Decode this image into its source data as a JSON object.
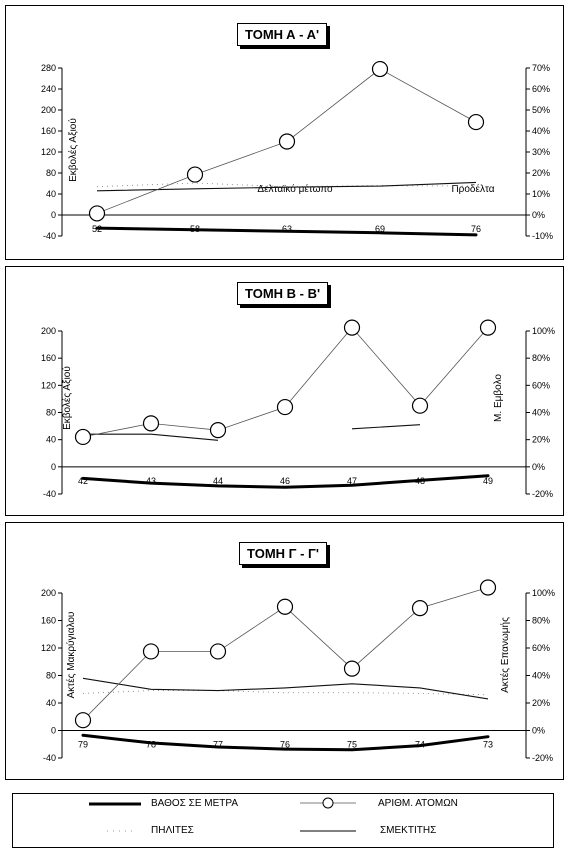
{
  "chart_data": [
    {
      "type": "line",
      "title": "ΤΟΜΗ Α - Α'",
      "categories": [
        "52",
        "58",
        "63",
        "69",
        "76"
      ],
      "ylabel": "Εκβολές Αξιού",
      "ylim": [
        -40,
        280
      ],
      "yticks": [
        -40,
        0,
        40,
        80,
        120,
        160,
        200,
        240,
        280
      ],
      "y2lim": [
        -10,
        70
      ],
      "y2ticks": [
        "-10%",
        "0%",
        "10%",
        "20%",
        "30%",
        "40%",
        "50%",
        "60%",
        "70%"
      ],
      "annotations": [
        "Δελταϊκό μέτωπο",
        "Προδέλτα"
      ],
      "series": [
        {
          "name": "ΑΡΙΘΜ. ΑΤΟΜΩΝ",
          "values": [
            3,
            77,
            140,
            278,
            177
          ]
        },
        {
          "name": "ΒΑΘΟΣ ΣΕ ΜΕΤΡΑ",
          "values": [
            -25,
            -28,
            -31,
            -34,
            -38
          ]
        },
        {
          "name": "ΠΗΛΙΤΕΣ",
          "values": [
            54,
            61,
            54,
            56,
            55
          ]
        },
        {
          "name": "ΣΜΕΚΤΙΤΗΣ",
          "values": [
            46,
            50,
            53,
            55,
            62
          ]
        }
      ]
    },
    {
      "type": "line",
      "title": "ΤΟΜΗ Β - Β'",
      "categories": [
        "42",
        "43",
        "44",
        "46",
        "47",
        "48",
        "49"
      ],
      "ylabel": "Εκβολές Αξιού",
      "y2label": "Μ. Εμβολο",
      "ylim": [
        -40,
        200
      ],
      "yticks": [
        -40,
        0,
        40,
        80,
        120,
        160,
        200
      ],
      "y2lim": [
        -20,
        100
      ],
      "y2ticks": [
        "-20%",
        "0%",
        "20%",
        "40%",
        "60%",
        "80%",
        "100%"
      ],
      "series": [
        {
          "name": "ΑΡΙΘΜ. ΑΤΟΜΩΝ",
          "values": [
            44,
            64,
            54,
            88,
            205,
            90,
            205
          ]
        },
        {
          "name": "ΒΑΘΟΣ ΣΕ ΜΕΤΡΑ",
          "values": [
            -17,
            -24,
            -28,
            -30,
            -27,
            -20,
            -13
          ]
        },
        {
          "name": "ΠΗΛΙΤΕΣ",
          "values": [
            null,
            null,
            null,
            null,
            null,
            null,
            null
          ]
        },
        {
          "name": "ΣΜΕΚΤΙΤΗΣ",
          "values": [
            48,
            48,
            39,
            null,
            56,
            62,
            null
          ]
        }
      ]
    },
    {
      "type": "line",
      "title": "ΤΟΜΗ Γ - Γ'",
      "categories": [
        "79",
        "78",
        "77",
        "76",
        "75",
        "74",
        "73"
      ],
      "ylabel": "Ακτές Μακρύγιαλου",
      "y2label": "Ακτές Επανωμής",
      "ylim": [
        -40,
        200
      ],
      "yticks": [
        -40,
        0,
        40,
        80,
        120,
        160,
        200
      ],
      "y2lim": [
        -20,
        100
      ],
      "y2ticks": [
        "-20%",
        "0%",
        "20%",
        "40%",
        "60%",
        "80%",
        "100%"
      ],
      "series": [
        {
          "name": "ΑΡΙΘΜ. ΑΤΟΜΩΝ",
          "values": [
            15,
            115,
            115,
            180,
            90,
            178,
            208
          ]
        },
        {
          "name": "ΒΑΘΟΣ ΣΕ ΜΕΤΡΑ",
          "values": [
            -7,
            -18,
            -24,
            -27,
            -28,
            -22,
            -9
          ]
        },
        {
          "name": "ΠΗΛΙΤΕΣ",
          "values": [
            54,
            58,
            58,
            55,
            55,
            54,
            52
          ]
        },
        {
          "name": "ΣΜΕΚΤΙΤΗΣ",
          "values": [
            76,
            60,
            58,
            62,
            68,
            62,
            46
          ]
        }
      ]
    }
  ],
  "legend": {
    "depth_label": "ΒΑΘΟΣ ΣΕ ΜΕΤΡΑ",
    "count_label": "ΑΡΙΘΜ. ΑΤΟΜΩΝ",
    "silts_label": "ΠΗΛΙΤΕΣ",
    "smectite_label": "ΣΜΕΚΤΙΤΗΣ"
  }
}
